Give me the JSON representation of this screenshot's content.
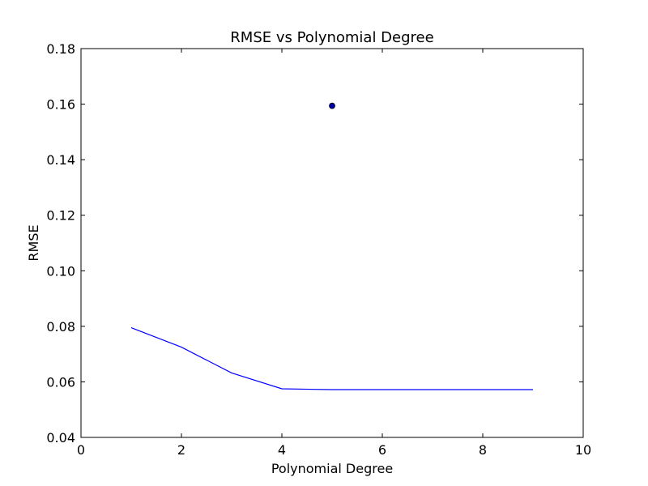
{
  "chart_data": {
    "type": "line",
    "title": "RMSE vs Polynomial Degree",
    "xlabel": "Polynomial Degree",
    "ylabel": "RMSE",
    "xlim": [
      0,
      10
    ],
    "ylim": [
      0.04,
      0.18
    ],
    "x_ticks": [
      "0",
      "2",
      "4",
      "6",
      "8",
      "10"
    ],
    "y_ticks": [
      "0.04",
      "0.06",
      "0.08",
      "0.10",
      "0.12",
      "0.14",
      "0.16",
      "0.18"
    ],
    "grid": false,
    "legend": "none",
    "series": [
      {
        "type": "line",
        "color": "#0000ff",
        "x": [
          1,
          2,
          3,
          4,
          5,
          6,
          7,
          8,
          9
        ],
        "y": [
          0.0795,
          0.0725,
          0.0632,
          0.0575,
          0.0572,
          0.0572,
          0.0572,
          0.0572,
          0.0572
        ]
      },
      {
        "type": "scatter",
        "color": "#0000aa",
        "x": [
          5
        ],
        "y": [
          0.1594
        ]
      }
    ]
  }
}
